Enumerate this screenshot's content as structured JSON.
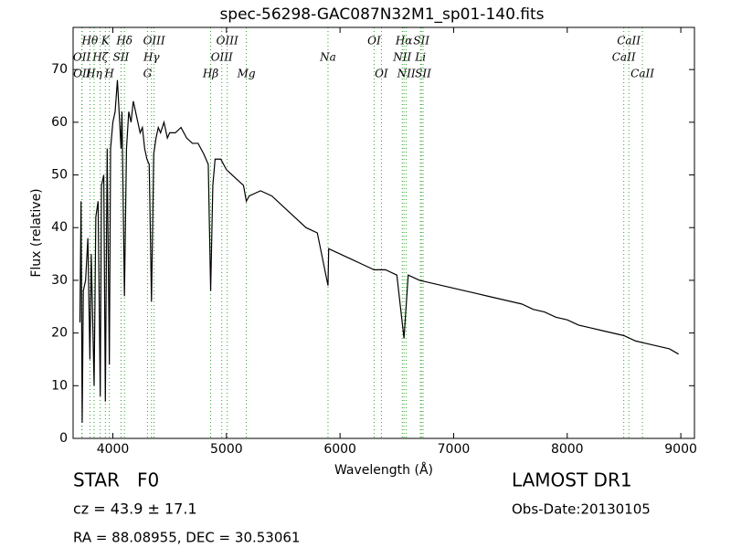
{
  "chart_data": {
    "type": "line",
    "title": "spec-56298-GAC087N32M1_sp01-140.fits",
    "x_label": "Wavelength (Å)",
    "y_label": "Flux (relative)",
    "xlim": [
      3650,
      9120
    ],
    "ylim": [
      0,
      78
    ],
    "xticks": [
      4000,
      5000,
      6000,
      7000,
      8000,
      9000
    ],
    "yticks": [
      0,
      10,
      20,
      30,
      40,
      50,
      60,
      70
    ],
    "grid": false,
    "color": "#000000",
    "line_color": "#2ca02c",
    "x": [
      3710,
      3720,
      3730,
      3740,
      3760,
      3780,
      3790,
      3798,
      3810,
      3835,
      3850,
      3870,
      3889,
      3900,
      3920,
      3934,
      3950,
      3969,
      3980,
      4000,
      4020,
      4040,
      4060,
      4072,
      4080,
      4102,
      4120,
      4140,
      4160,
      4180,
      4200,
      4220,
      4240,
      4260,
      4280,
      4300,
      4320,
      4340,
      4360,
      4380,
      4400,
      4420,
      4450,
      4480,
      4500,
      4550,
      4600,
      4650,
      4700,
      4750,
      4800,
      4840,
      4861,
      4880,
      4900,
      4950,
      5000,
      5050,
      5100,
      5150,
      5175,
      5200,
      5300,
      5400,
      5500,
      5600,
      5700,
      5800,
      5894,
      5900,
      6000,
      6100,
      6200,
      6300,
      6400,
      6500,
      6563,
      6600,
      6700,
      6800,
      6900,
      7000,
      7100,
      7200,
      7300,
      7400,
      7500,
      7600,
      7700,
      7800,
      7900,
      8000,
      8100,
      8200,
      8300,
      8400,
      8500,
      8600,
      8700,
      8800,
      8900,
      8980
    ],
    "values": [
      22,
      45,
      3,
      28,
      30,
      38,
      25,
      15,
      35,
      10,
      42,
      45,
      8,
      48,
      50,
      7,
      55,
      14,
      55,
      60,
      62,
      68,
      60,
      55,
      62,
      27,
      55,
      62,
      60,
      64,
      62,
      60,
      58,
      59,
      55,
      53,
      52,
      26,
      54,
      57,
      59,
      58,
      60,
      57,
      58,
      58,
      59,
      57,
      56,
      56,
      54,
      52,
      28,
      48,
      53,
      53,
      51,
      50,
      49,
      48,
      45,
      46,
      47,
      46,
      44,
      42,
      40,
      39,
      29,
      36,
      35,
      34,
      33,
      32,
      32,
      31,
      19,
      31,
      30,
      29.5,
      29,
      28.5,
      28,
      27.5,
      27,
      26.5,
      26,
      25.5,
      24.5,
      24,
      23,
      22.5,
      21.5,
      21,
      20.5,
      20,
      19.5,
      18.5,
      18,
      17.5,
      17,
      16
    ],
    "annotations": [
      [
        {
          "label": "Hθ",
          "x": 3798
        },
        {
          "label": "K",
          "x": 3934
        },
        {
          "label": "Hδ",
          "x": 4102
        },
        {
          "label": "OIII",
          "x": 4363
        },
        {
          "label": "OIII",
          "x": 5007
        },
        {
          "label": "OI",
          "x": 6300
        },
        {
          "label": "Hα",
          "x": 6563
        },
        {
          "label": "SII",
          "x": 6716
        },
        {
          "label": "CaII",
          "x": 8542
        }
      ],
      [
        {
          "label": "OII",
          "x": 3727
        },
        {
          "label": "Hζ",
          "x": 3889
        },
        {
          "label": "SII",
          "x": 4072
        },
        {
          "label": "Hγ",
          "x": 4340
        },
        {
          "label": "OIII",
          "x": 4959
        },
        {
          "label": "Na",
          "x": 5894
        },
        {
          "label": "NII",
          "x": 6548
        },
        {
          "label": "Li",
          "x": 6708
        },
        {
          "label": "CaII",
          "x": 8498
        }
      ],
      [
        {
          "label": "OII",
          "x": 3729
        },
        {
          "label": "Hη",
          "x": 3835
        },
        {
          "label": "H",
          "x": 3969
        },
        {
          "label": "G",
          "x": 4305
        },
        {
          "label": "Hβ",
          "x": 4861
        },
        {
          "label": "Mg",
          "x": 5175
        },
        {
          "label": "OI",
          "x": 6364
        },
        {
          "label": "NII",
          "x": 6583
        },
        {
          "label": "SII",
          "x": 6731
        },
        {
          "label": "CaII",
          "x": 8662
        }
      ]
    ]
  },
  "footer": {
    "object": "STAR   F0",
    "redshift": "cz = 43.9 ± 17.1",
    "coords": "RA = 88.08955, DEC = 30.53061",
    "survey": "LAMOST DR1",
    "obs_date": "Obs-Date:20130105"
  }
}
